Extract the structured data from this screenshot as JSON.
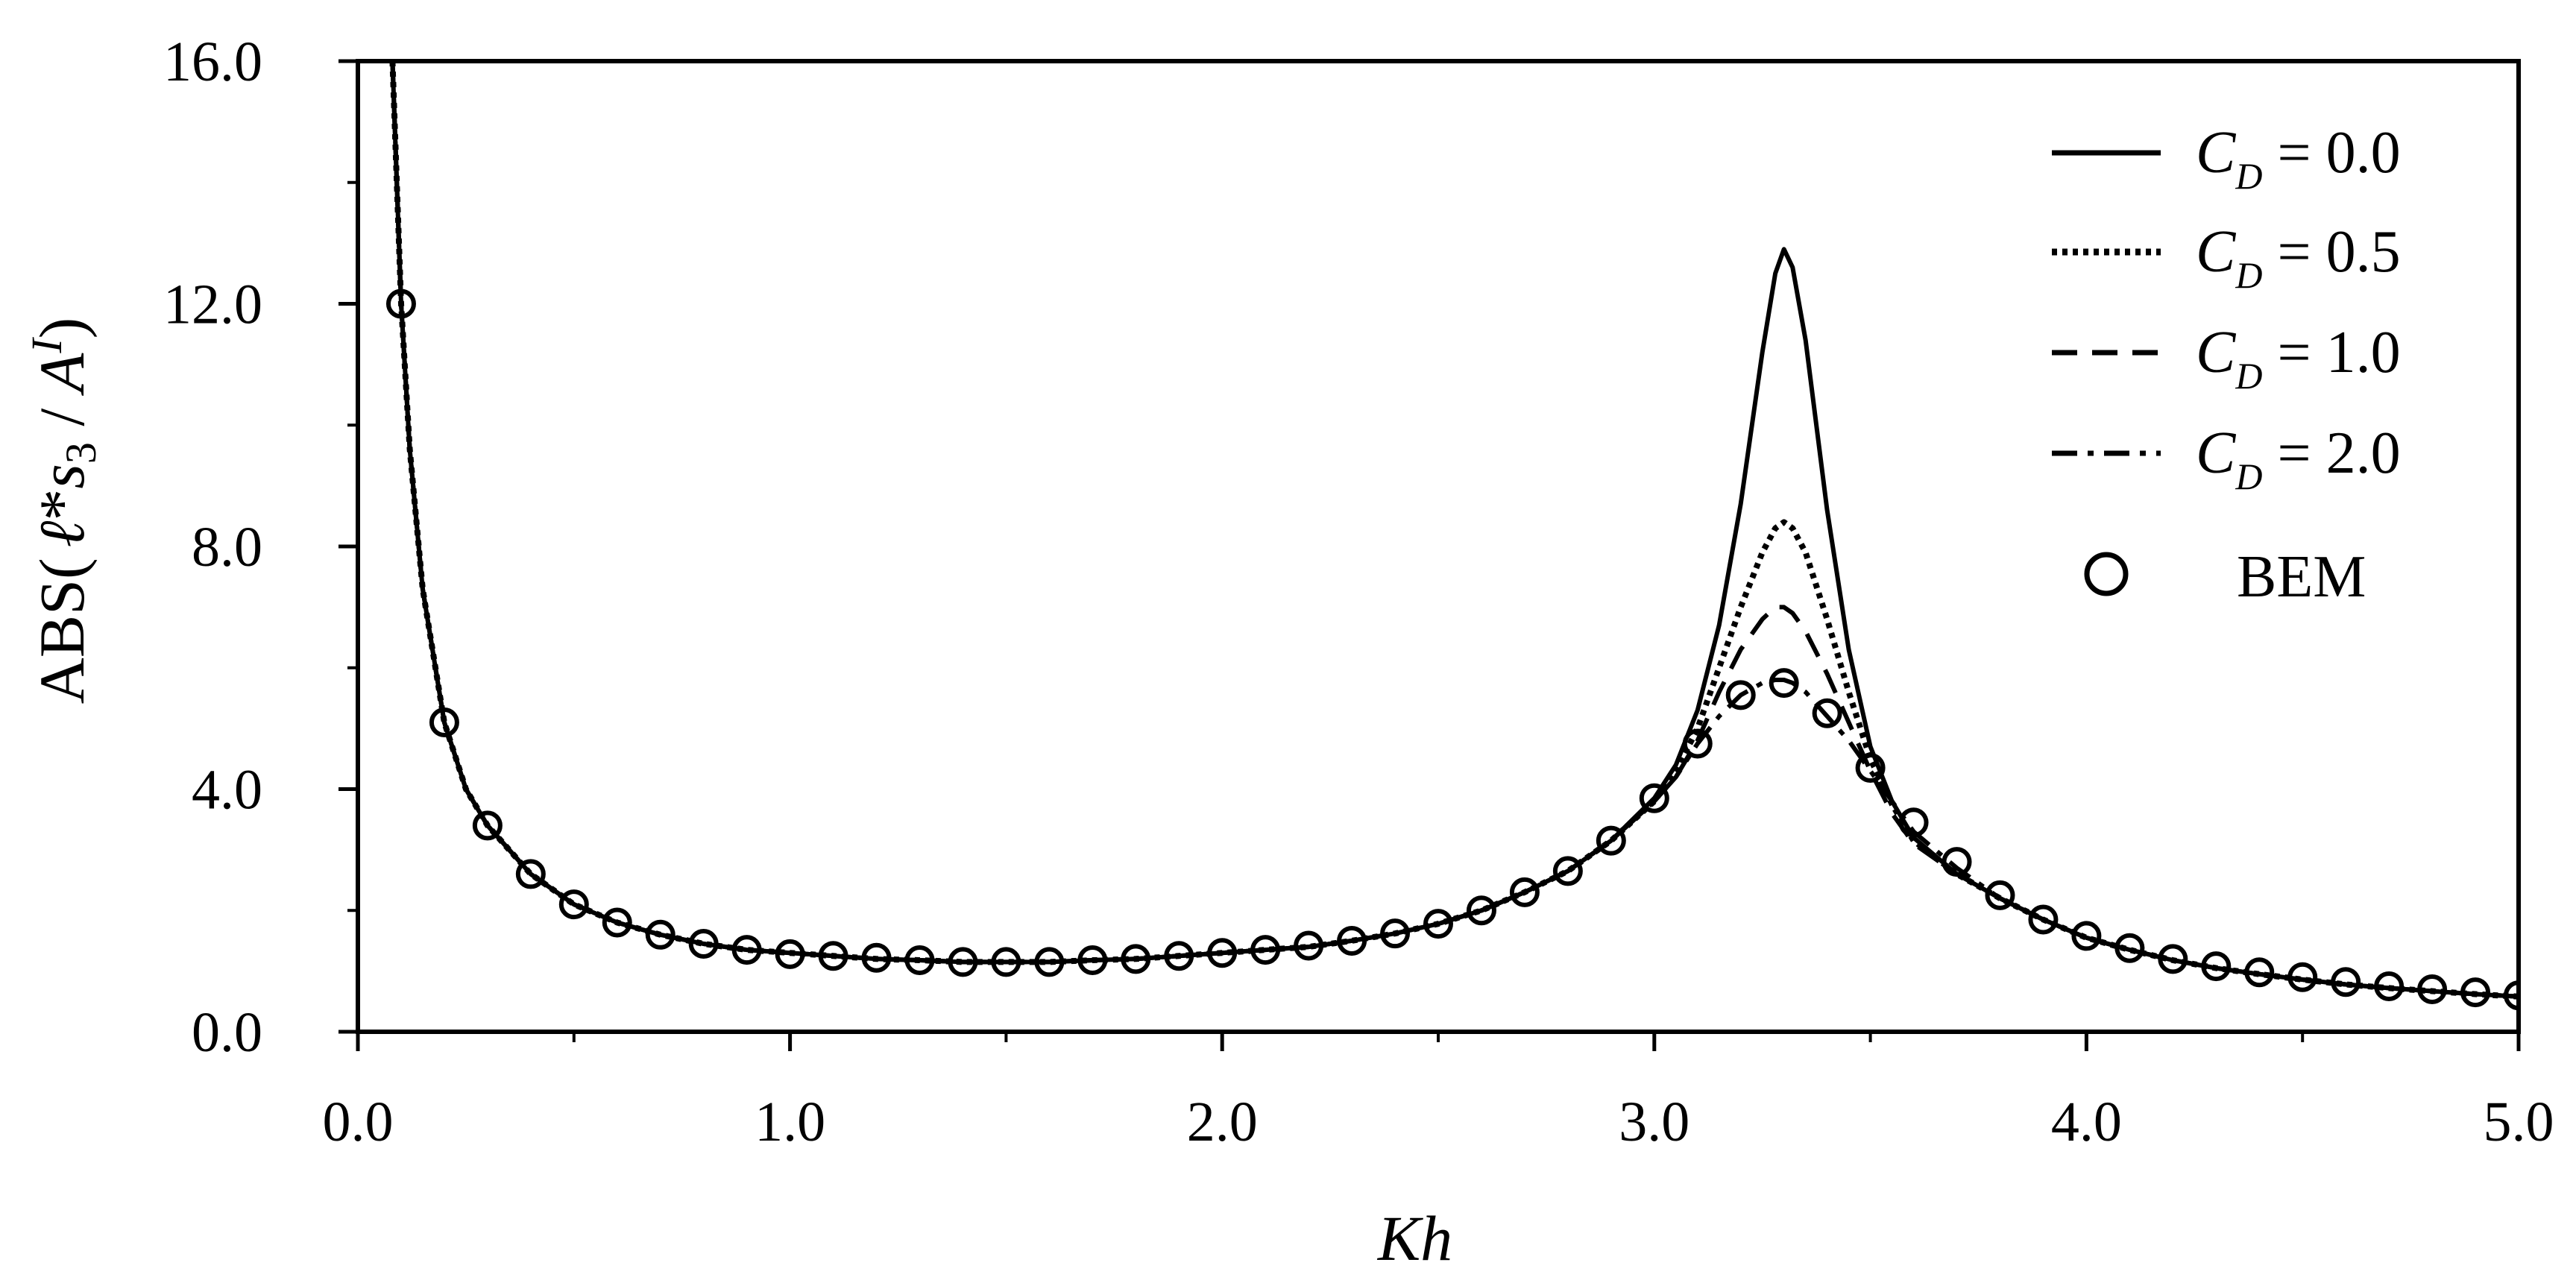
{
  "chart_data": {
    "type": "line",
    "xlabel": "Kh",
    "ylabel": {
      "prefix": "ABS(",
      "var_l": "ℓ",
      "star": "*",
      "var_s": "s",
      "sub_s": "3",
      "slash": " / ",
      "var_a": "A",
      "sup_a": "I",
      "suffix": ")"
    },
    "xlim": [
      0,
      5
    ],
    "ylim": [
      0,
      16
    ],
    "xticks": [
      0,
      1,
      2,
      3,
      4,
      5
    ],
    "xtick_labels": [
      "0.0",
      "1.0",
      "2.0",
      "3.0",
      "4.0",
      "5.0"
    ],
    "yticks": [
      0,
      4,
      8,
      12,
      16
    ],
    "ytick_labels": [
      "0.0",
      "4.0",
      "8.0",
      "12.0",
      "16.0"
    ],
    "grid": false,
    "legend_position": "top-right",
    "legend_var": "C",
    "legend_sub": "D",
    "legend_eq": " = ",
    "series": [
      {
        "name": "0.0",
        "style": "solid",
        "x": [
          0.08,
          0.1,
          0.12,
          0.15,
          0.2,
          0.25,
          0.3,
          0.4,
          0.5,
          0.6,
          0.7,
          0.8,
          0.9,
          1.0,
          1.1,
          1.2,
          1.3,
          1.4,
          1.5,
          1.6,
          1.7,
          1.8,
          1.9,
          2.0,
          2.1,
          2.2,
          2.3,
          2.4,
          2.5,
          2.6,
          2.7,
          2.8,
          2.9,
          3.0,
          3.05,
          3.1,
          3.15,
          3.2,
          3.25,
          3.28,
          3.3,
          3.32,
          3.35,
          3.4,
          3.45,
          3.5,
          3.55,
          3.6,
          3.7,
          3.8,
          3.9,
          4.0,
          4.1,
          4.2,
          4.3,
          4.4,
          4.5,
          4.6,
          4.7,
          4.8,
          4.9,
          5.0
        ],
        "y": [
          16.0,
          12.0,
          9.6,
          7.3,
          5.1,
          4.0,
          3.4,
          2.6,
          2.1,
          1.8,
          1.6,
          1.45,
          1.35,
          1.3,
          1.25,
          1.2,
          1.18,
          1.15,
          1.15,
          1.15,
          1.18,
          1.2,
          1.25,
          1.3,
          1.35,
          1.4,
          1.5,
          1.62,
          1.78,
          2.0,
          2.3,
          2.65,
          3.15,
          3.85,
          4.4,
          5.3,
          6.7,
          8.7,
          11.2,
          12.5,
          12.9,
          12.6,
          11.4,
          8.6,
          6.3,
          4.7,
          3.8,
          3.2,
          2.6,
          2.2,
          1.85,
          1.55,
          1.35,
          1.18,
          1.05,
          0.95,
          0.86,
          0.78,
          0.72,
          0.67,
          0.62,
          0.58
        ]
      },
      {
        "name": "0.5",
        "style": "dotted",
        "x": [
          0.08,
          0.1,
          0.12,
          0.15,
          0.2,
          0.25,
          0.3,
          0.4,
          0.5,
          0.6,
          0.7,
          0.8,
          0.9,
          1.0,
          1.1,
          1.2,
          1.3,
          1.4,
          1.5,
          1.6,
          1.7,
          1.8,
          1.9,
          2.0,
          2.1,
          2.2,
          2.3,
          2.4,
          2.5,
          2.6,
          2.7,
          2.8,
          2.9,
          3.0,
          3.05,
          3.1,
          3.15,
          3.2,
          3.25,
          3.28,
          3.3,
          3.32,
          3.35,
          3.4,
          3.45,
          3.5,
          3.55,
          3.6,
          3.7,
          3.8,
          3.9,
          4.0,
          4.1,
          4.2,
          4.3,
          4.4,
          4.5,
          4.6,
          4.7,
          4.8,
          4.9,
          5.0
        ],
        "y": [
          16.0,
          12.0,
          9.6,
          7.3,
          5.1,
          4.0,
          3.4,
          2.6,
          2.1,
          1.8,
          1.6,
          1.45,
          1.35,
          1.3,
          1.25,
          1.2,
          1.18,
          1.15,
          1.15,
          1.15,
          1.18,
          1.2,
          1.25,
          1.3,
          1.35,
          1.4,
          1.5,
          1.62,
          1.78,
          2.0,
          2.3,
          2.65,
          3.15,
          3.8,
          4.3,
          5.0,
          6.0,
          7.0,
          7.9,
          8.3,
          8.4,
          8.3,
          7.9,
          6.8,
          5.6,
          4.5,
          3.75,
          3.15,
          2.6,
          2.2,
          1.85,
          1.55,
          1.35,
          1.18,
          1.05,
          0.95,
          0.86,
          0.78,
          0.72,
          0.67,
          0.62,
          0.58
        ]
      },
      {
        "name": "1.0",
        "style": "dashed",
        "x": [
          0.08,
          0.1,
          0.12,
          0.15,
          0.2,
          0.25,
          0.3,
          0.4,
          0.5,
          0.6,
          0.7,
          0.8,
          0.9,
          1.0,
          1.1,
          1.2,
          1.3,
          1.4,
          1.5,
          1.6,
          1.7,
          1.8,
          1.9,
          2.0,
          2.1,
          2.2,
          2.3,
          2.4,
          2.5,
          2.6,
          2.7,
          2.8,
          2.9,
          3.0,
          3.05,
          3.1,
          3.15,
          3.2,
          3.25,
          3.28,
          3.3,
          3.32,
          3.35,
          3.4,
          3.45,
          3.5,
          3.55,
          3.6,
          3.7,
          3.8,
          3.9,
          4.0,
          4.1,
          4.2,
          4.3,
          4.4,
          4.5,
          4.6,
          4.7,
          4.8,
          4.9,
          5.0
        ],
        "y": [
          16.0,
          12.0,
          9.6,
          7.3,
          5.1,
          4.0,
          3.4,
          2.6,
          2.1,
          1.8,
          1.6,
          1.45,
          1.35,
          1.3,
          1.25,
          1.2,
          1.18,
          1.15,
          1.15,
          1.15,
          1.18,
          1.2,
          1.25,
          1.3,
          1.35,
          1.4,
          1.5,
          1.62,
          1.78,
          2.0,
          2.3,
          2.65,
          3.15,
          3.8,
          4.2,
          4.8,
          5.6,
          6.3,
          6.8,
          7.0,
          7.0,
          6.9,
          6.6,
          5.9,
          5.1,
          4.3,
          3.6,
          3.1,
          2.6,
          2.2,
          1.85,
          1.55,
          1.35,
          1.18,
          1.05,
          0.95,
          0.86,
          0.78,
          0.72,
          0.67,
          0.62,
          0.58
        ]
      },
      {
        "name": "2.0",
        "style": "dashdot",
        "x": [
          0.08,
          0.1,
          0.12,
          0.15,
          0.2,
          0.25,
          0.3,
          0.4,
          0.5,
          0.6,
          0.7,
          0.8,
          0.9,
          1.0,
          1.1,
          1.2,
          1.3,
          1.4,
          1.5,
          1.6,
          1.7,
          1.8,
          1.9,
          2.0,
          2.1,
          2.2,
          2.3,
          2.4,
          2.5,
          2.6,
          2.7,
          2.8,
          2.9,
          3.0,
          3.05,
          3.1,
          3.15,
          3.2,
          3.25,
          3.28,
          3.3,
          3.32,
          3.35,
          3.4,
          3.45,
          3.5,
          3.55,
          3.6,
          3.7,
          3.8,
          3.9,
          4.0,
          4.1,
          4.2,
          4.3,
          4.4,
          4.5,
          4.6,
          4.7,
          4.8,
          4.9,
          5.0
        ],
        "y": [
          16.0,
          12.0,
          9.6,
          7.3,
          5.1,
          4.0,
          3.4,
          2.6,
          2.1,
          1.8,
          1.6,
          1.45,
          1.35,
          1.3,
          1.25,
          1.2,
          1.18,
          1.15,
          1.15,
          1.15,
          1.18,
          1.2,
          1.25,
          1.3,
          1.35,
          1.4,
          1.5,
          1.62,
          1.78,
          2.0,
          2.3,
          2.65,
          3.15,
          3.8,
          4.2,
          4.75,
          5.2,
          5.55,
          5.75,
          5.8,
          5.8,
          5.75,
          5.6,
          5.2,
          4.8,
          4.3,
          3.8,
          3.3,
          2.7,
          2.2,
          1.85,
          1.55,
          1.35,
          1.18,
          1.05,
          0.95,
          0.86,
          0.78,
          0.72,
          0.67,
          0.62,
          0.58
        ]
      },
      {
        "name": "BEM",
        "style": "markers",
        "x": [
          0.1,
          0.2,
          0.3,
          0.4,
          0.5,
          0.6,
          0.7,
          0.8,
          0.9,
          1.0,
          1.1,
          1.2,
          1.3,
          1.4,
          1.5,
          1.6,
          1.7,
          1.8,
          1.9,
          2.0,
          2.1,
          2.2,
          2.3,
          2.4,
          2.5,
          2.6,
          2.7,
          2.8,
          2.9,
          3.0,
          3.1,
          3.2,
          3.3,
          3.4,
          3.5,
          3.6,
          3.7,
          3.8,
          3.9,
          4.0,
          4.1,
          4.2,
          4.3,
          4.4,
          4.5,
          4.6,
          4.7,
          4.8,
          4.9,
          5.0
        ],
        "y": [
          12.0,
          5.1,
          3.4,
          2.6,
          2.1,
          1.8,
          1.6,
          1.45,
          1.35,
          1.28,
          1.25,
          1.22,
          1.18,
          1.15,
          1.15,
          1.15,
          1.18,
          1.2,
          1.25,
          1.3,
          1.35,
          1.42,
          1.5,
          1.62,
          1.78,
          2.0,
          2.3,
          2.65,
          3.15,
          3.85,
          4.75,
          5.55,
          5.75,
          5.25,
          4.35,
          3.45,
          2.8,
          2.25,
          1.85,
          1.58,
          1.38,
          1.2,
          1.08,
          0.98,
          0.9,
          0.82,
          0.75,
          0.7,
          0.65,
          0.6
        ]
      }
    ]
  }
}
